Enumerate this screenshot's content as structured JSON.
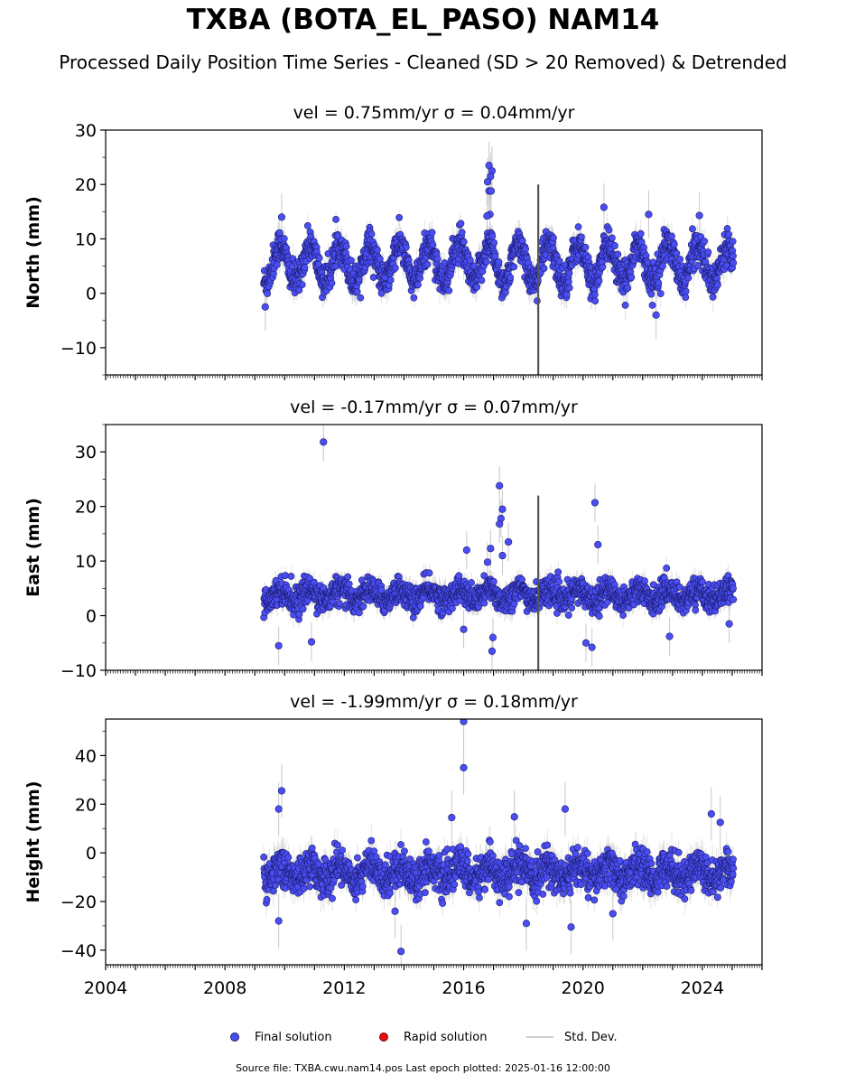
{
  "figure": {
    "title": "TXBA (BOTA_EL_PASO) NAM14",
    "subtitle": "Processed Daily Position Time Series - Cleaned (SD > 20 Removed) & Detrended",
    "footer": "Source file: TXBA.cwu.nam14.pos  Last epoch plotted: 2025-01-16 12:00:00"
  },
  "legend": {
    "final": "Final solution",
    "rapid": "Rapid solution",
    "sd": "Std. Dev."
  },
  "colors": {
    "final_fill": "#4a4ef2",
    "final_edge": "#1c1c6e",
    "rapid": "#e01010",
    "sd": "#c8c8c8",
    "offset": "#555555"
  },
  "chart_data": [
    {
      "type": "scatter",
      "title": "vel = 0.75mm/yr   σ = 0.04mm/yr",
      "ylabel": "North (mm)",
      "xlim": [
        2004,
        2026
      ],
      "ylim": [
        -15,
        30
      ],
      "yticks": [
        -10,
        0,
        10,
        20,
        30
      ],
      "xticks": [
        2004,
        2008,
        2012,
        2016,
        2020,
        2024
      ],
      "data_range": [
        2009.3,
        2025.04
      ],
      "seasonal": {
        "mean": 5.5,
        "amplitude": 3.5,
        "noise": 2.0
      },
      "vertical_offsets": [
        {
          "x": 2018.5,
          "y1": -15,
          "y2": 20
        }
      ],
      "outliers": [
        {
          "x": 2016.85,
          "y": 23.5
        },
        {
          "x": 2016.95,
          "y": 22.5
        },
        {
          "x": 2016.9,
          "y": 21.5
        },
        {
          "x": 2016.8,
          "y": 20.5
        },
        {
          "x": 2016.85,
          "y": 18.8
        },
        {
          "x": 2016.92,
          "y": 18.8
        },
        {
          "x": 2016.88,
          "y": 14.5
        },
        {
          "x": 2016.78,
          "y": 14.2
        },
        {
          "x": 2020.7,
          "y": 15.8
        },
        {
          "x": 2022.2,
          "y": 14.5
        },
        {
          "x": 2023.9,
          "y": 14.3
        },
        {
          "x": 2022.45,
          "y": -4.0
        },
        {
          "x": 2009.35,
          "y": -2.5
        },
        {
          "x": 2009.9,
          "y": 14.0
        }
      ]
    },
    {
      "type": "scatter",
      "title": "vel = -0.17mm/yr   σ = 0.07mm/yr",
      "ylabel": "East (mm)",
      "xlim": [
        2004,
        2026
      ],
      "ylim": [
        -10,
        35
      ],
      "yticks": [
        -10,
        0,
        10,
        20,
        30
      ],
      "xticks": [
        2004,
        2008,
        2012,
        2016,
        2020,
        2024
      ],
      "data_range": [
        2009.3,
        2025.04
      ],
      "seasonal": {
        "mean": 3.8,
        "amplitude": 1.0,
        "noise": 1.6
      },
      "vertical_offsets": [
        {
          "x": 2018.5,
          "y1": -10,
          "y2": 22
        }
      ],
      "outliers": [
        {
          "x": 2011.3,
          "y": 31.8
        },
        {
          "x": 2017.2,
          "y": 23.8
        },
        {
          "x": 2017.3,
          "y": 19.5
        },
        {
          "x": 2017.25,
          "y": 17.8
        },
        {
          "x": 2017.2,
          "y": 16.8
        },
        {
          "x": 2017.5,
          "y": 13.5
        },
        {
          "x": 2016.1,
          "y": 12.0
        },
        {
          "x": 2016.9,
          "y": 12.3
        },
        {
          "x": 2017.3,
          "y": 11.0
        },
        {
          "x": 2016.8,
          "y": 9.8
        },
        {
          "x": 2020.4,
          "y": 20.7
        },
        {
          "x": 2020.5,
          "y": 13.0
        },
        {
          "x": 2009.8,
          "y": -5.5
        },
        {
          "x": 2010.9,
          "y": -4.8
        },
        {
          "x": 2016.95,
          "y": -6.5
        },
        {
          "x": 2016.98,
          "y": -4.0
        },
        {
          "x": 2020.1,
          "y": -5.0
        },
        {
          "x": 2020.3,
          "y": -5.8
        },
        {
          "x": 2022.9,
          "y": -3.8
        },
        {
          "x": 2016.0,
          "y": -2.5
        },
        {
          "x": 2024.9,
          "y": -1.5
        }
      ]
    },
    {
      "type": "scatter",
      "title": "vel = -1.99mm/yr   σ = 0.18mm/yr",
      "ylabel": "Height (mm)",
      "xlim": [
        2004,
        2026
      ],
      "ylim": [
        -46,
        55
      ],
      "yticks": [
        -40,
        -20,
        0,
        20,
        40
      ],
      "xticks": [
        2004,
        2008,
        2012,
        2016,
        2020,
        2024
      ],
      "data_range": [
        2009.3,
        2025.04
      ],
      "seasonal": {
        "mean": -8.0,
        "amplitude": 3.0,
        "noise": 5.0
      },
      "vertical_offsets": [],
      "outliers": [
        {
          "x": 2016.0,
          "y": 54.0
        },
        {
          "x": 2016.0,
          "y": 35.0
        },
        {
          "x": 2009.9,
          "y": 25.5
        },
        {
          "x": 2009.8,
          "y": 18.0
        },
        {
          "x": 2019.4,
          "y": 18.0
        },
        {
          "x": 2017.7,
          "y": 14.8
        },
        {
          "x": 2015.6,
          "y": 14.5
        },
        {
          "x": 2024.3,
          "y": 16.0
        },
        {
          "x": 2024.6,
          "y": 12.5
        },
        {
          "x": 2013.9,
          "y": -40.5
        },
        {
          "x": 2018.1,
          "y": -29.0
        },
        {
          "x": 2019.6,
          "y": -30.5
        },
        {
          "x": 2009.8,
          "y": -28.0
        },
        {
          "x": 2013.7,
          "y": -24.0
        },
        {
          "x": 2021.0,
          "y": -25.0
        }
      ]
    }
  ]
}
